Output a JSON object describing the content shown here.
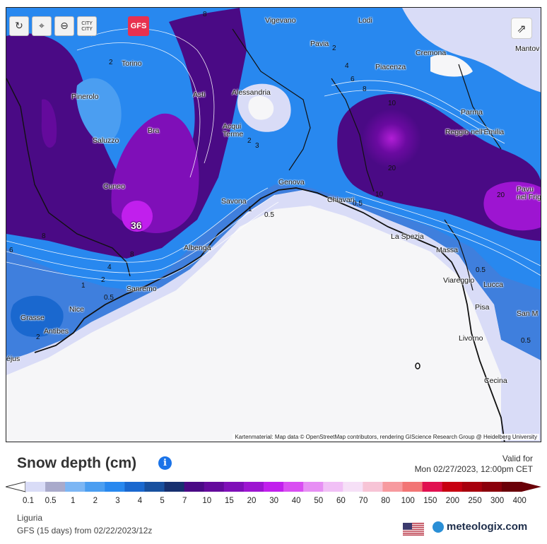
{
  "toolbar": {
    "refresh_icon": "refresh-icon",
    "pin_icon": "map-pin-icon",
    "zoom_icon": "zoom-out-icon",
    "city_label": "CITY\nCITY",
    "model_button": "GFS"
  },
  "map": {
    "credit": "Kartenmaterial: Map data © OpenStreetMap contributors, rendering GIScience Research Group @ Heidelberg University",
    "peak_value": "36",
    "cities": [
      {
        "name": "Vigevano"
      },
      {
        "name": "Lodi"
      },
      {
        "name": "Pavia"
      },
      {
        "name": "Cremona"
      },
      {
        "name": "Mantov"
      },
      {
        "name": "Torino"
      },
      {
        "name": "Pinerolo"
      },
      {
        "name": "Asti"
      },
      {
        "name": "Alessandria"
      },
      {
        "name": "Piacenza"
      },
      {
        "name": "Parma"
      },
      {
        "name": "Reggio nell'Emilia"
      },
      {
        "name": "Bra"
      },
      {
        "name": "Acqui\nTerme"
      },
      {
        "name": "Saluzzo"
      },
      {
        "name": "Cuneo"
      },
      {
        "name": "Genova"
      },
      {
        "name": "Savona"
      },
      {
        "name": "Chiavari"
      },
      {
        "name": "Pavu\nnel Frig"
      },
      {
        "name": "La Spezia"
      },
      {
        "name": "Albenga"
      },
      {
        "name": "Massa"
      },
      {
        "name": "Sanremo"
      },
      {
        "name": "Viareggio"
      },
      {
        "name": "Lucca"
      },
      {
        "name": "Nice"
      },
      {
        "name": "Pisa"
      },
      {
        "name": "San M"
      },
      {
        "name": "Grasse"
      },
      {
        "name": "Antibes"
      },
      {
        "name": "Livorno"
      },
      {
        "name": "éjus"
      },
      {
        "name": "Cecina"
      }
    ],
    "contour_labels": [
      "8",
      "2",
      "4",
      "6",
      "8",
      "10",
      "20",
      "2",
      "3",
      "1",
      "0.5",
      "10",
      "0.5",
      "20",
      "8",
      "6",
      "4",
      "2",
      "1",
      "0.5",
      "2",
      "0.5",
      "2",
      "8",
      "0.5"
    ]
  },
  "legend": {
    "title": "Snow depth (cm)",
    "valid_for_label": "Valid for",
    "valid_time": "Mon 02/27/2023, 12:00pm CET",
    "colors": [
      "#d9dcf7",
      "#a9aacb",
      "#7cb6f4",
      "#4b9ef1",
      "#2888ef",
      "#1a68cf",
      "#18509f",
      "#17306f",
      "#4a0a85",
      "#640a9c",
      "#7f0fb8",
      "#9d15d1",
      "#c11fed",
      "#d94ef2",
      "#e78ff4",
      "#f1c0f6",
      "#f6e0f7",
      "#f7c4d6",
      "#f79a9f",
      "#f27575",
      "#e11150",
      "#c70011",
      "#a7000d",
      "#8a000b",
      "#6a0008"
    ],
    "ticks": [
      "0.1",
      "0.5",
      "1",
      "2",
      "3",
      "4",
      "5",
      "7",
      "10",
      "15",
      "20",
      "30",
      "40",
      "50",
      "60",
      "70",
      "80",
      "100",
      "150",
      "200",
      "250",
      "300",
      "400"
    ]
  },
  "footer": {
    "region": "Liguria",
    "model_run": "GFS  (15 days)  from 02/22/2023/12z",
    "brand": "meteologix.com",
    "flag_icon": "us-flag-icon"
  }
}
